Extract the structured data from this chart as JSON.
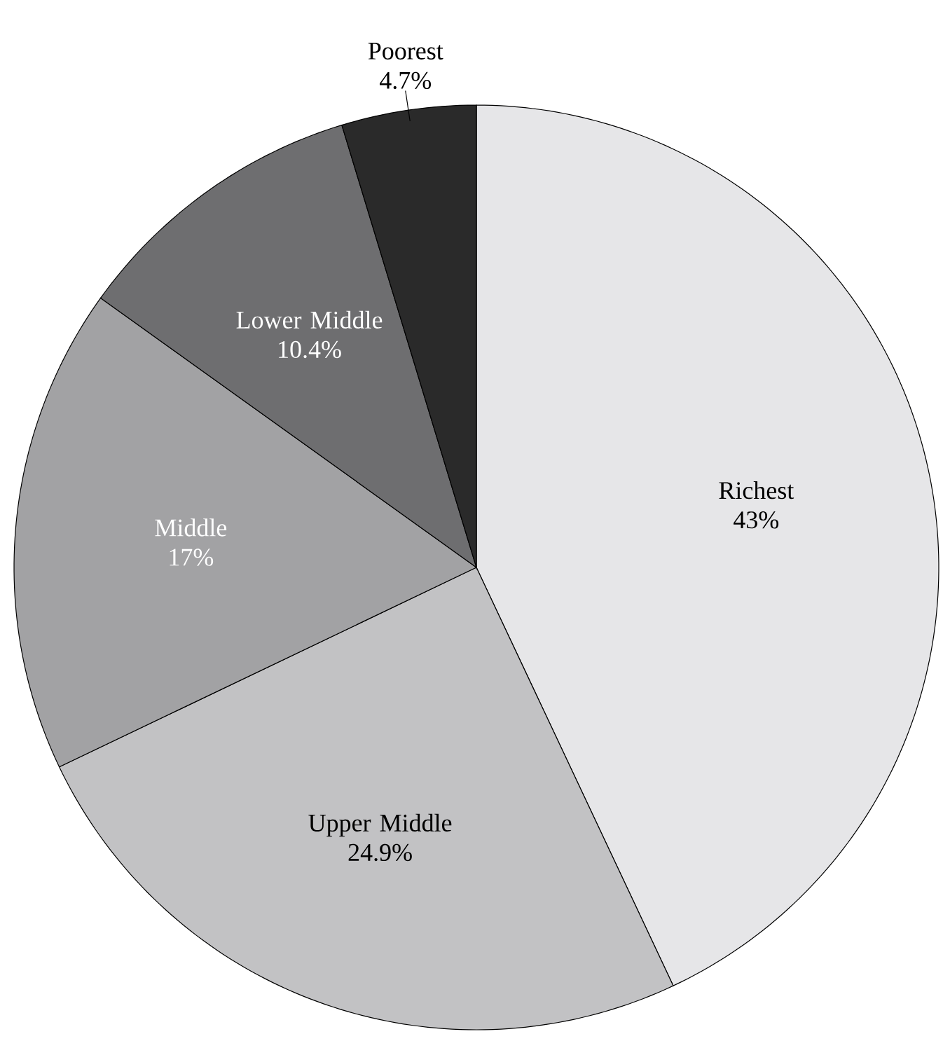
{
  "chart_data": {
    "type": "pie",
    "categories": [
      "Richest",
      "Upper Middle",
      "Middle",
      "Lower Middle",
      "Poorest"
    ],
    "values": [
      43,
      24.9,
      17,
      10.4,
      4.7
    ],
    "value_labels": [
      "43%",
      "24.9%",
      "17%",
      "10.4%",
      "4.7%"
    ],
    "colors": [
      "#e6e6e8",
      "#c2c2c4",
      "#a2a2a4",
      "#6e6e70",
      "#2a2a2a"
    ]
  }
}
